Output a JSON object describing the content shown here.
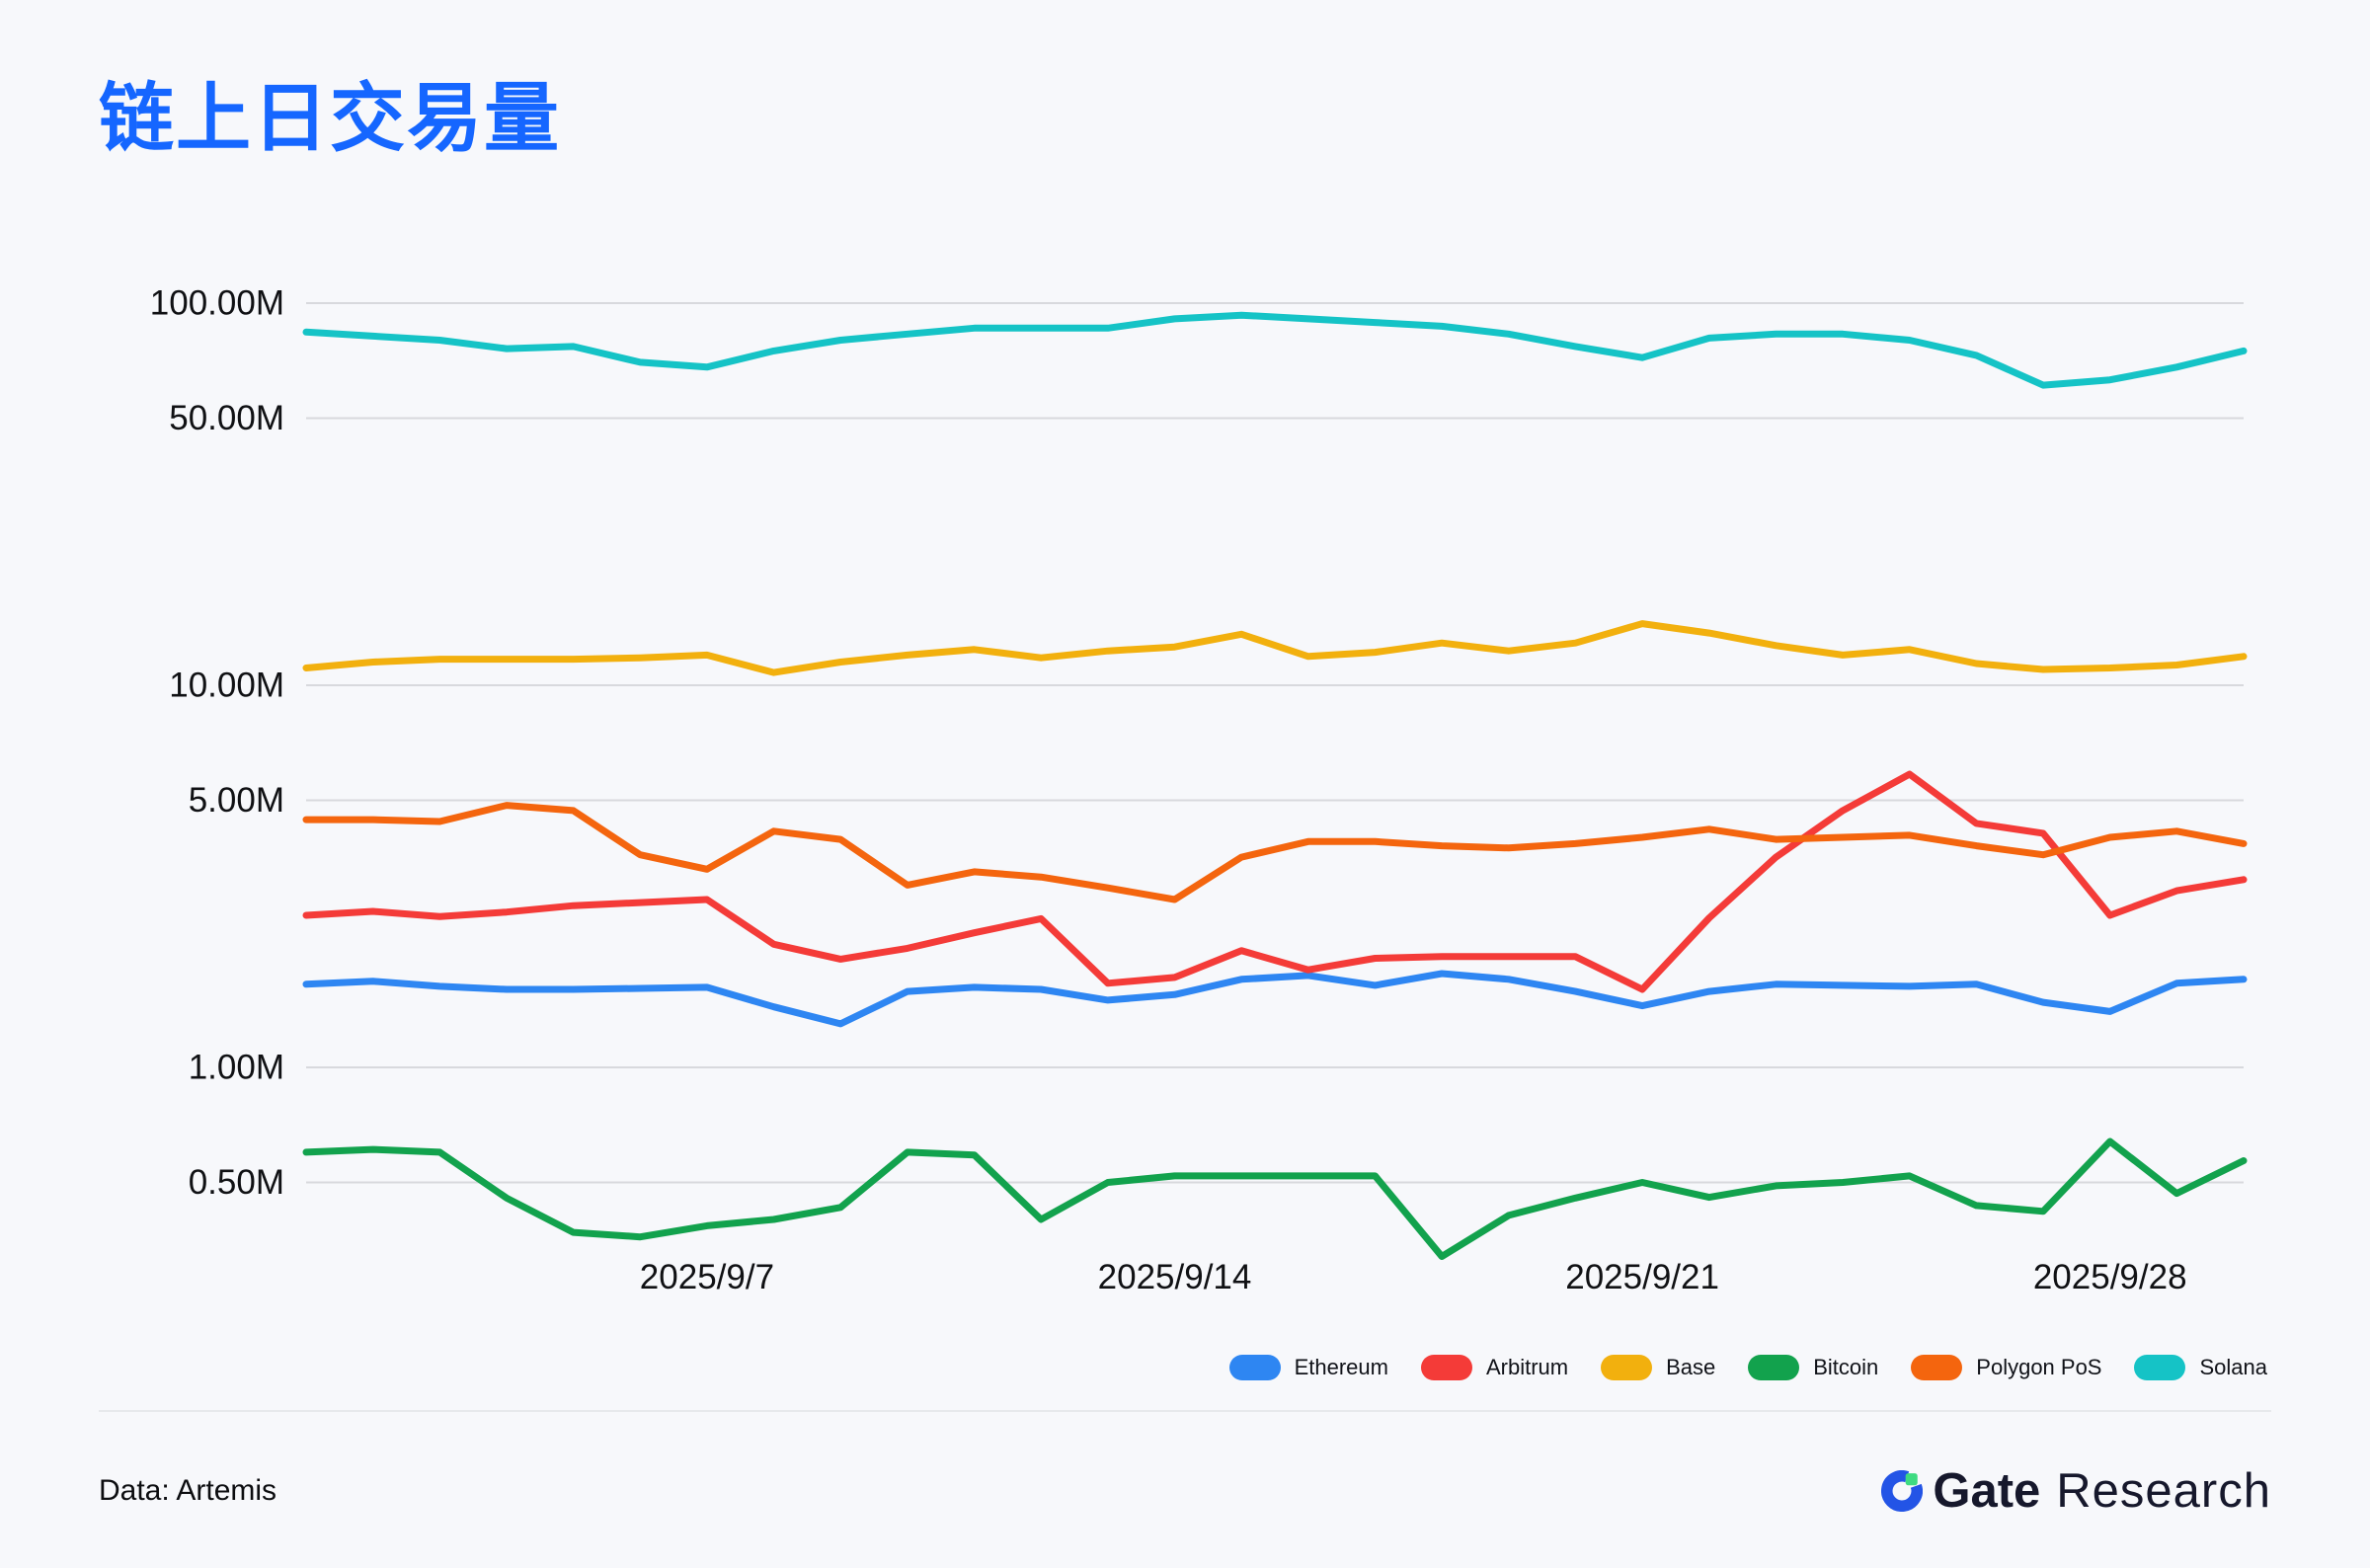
{
  "page": {
    "title": "链上日交易量",
    "title_color": "#1566FF",
    "source_note": "Data: Artemis"
  },
  "brand": {
    "logo_text_bold": "Gate",
    "logo_text_regular": "Research",
    "logo_mark_color": "#2354E6",
    "logo_accent_color": "#3EDB81"
  },
  "chart_data": {
    "type": "line",
    "title": "链上日交易量",
    "xlabel": "",
    "ylabel": "",
    "unit": "M",
    "y_scale": "log",
    "grid": "horizontal-only",
    "legend_position": "bottom-right",
    "x": [
      "2025/9/1",
      "2025/9/2",
      "2025/9/3",
      "2025/9/4",
      "2025/9/5",
      "2025/9/6",
      "2025/9/7",
      "2025/9/8",
      "2025/9/9",
      "2025/9/10",
      "2025/9/11",
      "2025/9/12",
      "2025/9/13",
      "2025/9/14",
      "2025/9/15",
      "2025/9/16",
      "2025/9/17",
      "2025/9/18",
      "2025/9/19",
      "2025/9/20",
      "2025/9/21",
      "2025/9/22",
      "2025/9/23",
      "2025/9/24",
      "2025/9/25",
      "2025/9/26",
      "2025/9/27",
      "2025/9/28",
      "2025/9/29",
      "2025/9/30"
    ],
    "x_tick_indices": [
      6,
      13,
      20,
      27
    ],
    "x_tick_labels": [
      "2025/9/7",
      "2025/9/14",
      "2025/9/21",
      "2025/9/28"
    ],
    "y_gridlines": [
      {
        "value": 100,
        "label": "100.00M"
      },
      {
        "value": 50,
        "label": "50.00M"
      },
      {
        "value": 10,
        "label": "10.00M"
      },
      {
        "value": 5,
        "label": "5.00M"
      },
      {
        "value": 1,
        "label": "1.00M"
      },
      {
        "value": 0.5,
        "label": "0.50M"
      }
    ],
    "series": [
      {
        "name": "Ethereum",
        "color": "#2E86F2",
        "values": [
          1.65,
          1.68,
          1.63,
          1.6,
          1.6,
          1.61,
          1.62,
          1.44,
          1.3,
          1.58,
          1.62,
          1.6,
          1.5,
          1.55,
          1.7,
          1.74,
          1.64,
          1.76,
          1.7,
          1.58,
          1.45,
          1.58,
          1.65,
          1.64,
          1.63,
          1.65,
          1.48,
          1.4,
          1.66,
          1.7
        ]
      },
      {
        "name": "Arbitrum",
        "color": "#F43B38",
        "values": [
          2.5,
          2.56,
          2.48,
          2.55,
          2.65,
          2.7,
          2.75,
          2.1,
          1.92,
          2.05,
          2.25,
          2.45,
          1.66,
          1.72,
          2.02,
          1.8,
          1.93,
          1.95,
          1.95,
          1.95,
          1.6,
          2.46,
          3.55,
          4.7,
          5.85,
          4.35,
          4.1,
          2.5,
          2.9,
          3.1
        ]
      },
      {
        "name": "Base",
        "color": "#F2B00E",
        "values": [
          11.1,
          11.5,
          11.7,
          11.7,
          11.7,
          11.8,
          12.0,
          10.8,
          11.5,
          12.0,
          12.4,
          11.8,
          12.3,
          12.6,
          13.6,
          11.9,
          12.2,
          12.9,
          12.3,
          12.9,
          14.5,
          13.7,
          12.7,
          12.0,
          12.4,
          11.4,
          11.0,
          11.1,
          11.3,
          11.9
        ]
      },
      {
        "name": "Bitcoin",
        "color": "#12A24D",
        "values": [
          0.6,
          0.61,
          0.6,
          0.455,
          0.37,
          0.36,
          0.385,
          0.4,
          0.43,
          0.6,
          0.59,
          0.4,
          0.5,
          0.52,
          0.52,
          0.52,
          0.52,
          0.32,
          0.41,
          0.455,
          0.5,
          0.457,
          0.49,
          0.5,
          0.52,
          0.435,
          0.42,
          0.64,
          0.468,
          0.57
        ]
      },
      {
        "name": "Polygon PoS",
        "color": "#F4650E",
        "values": [
          4.45,
          4.45,
          4.4,
          4.85,
          4.7,
          3.6,
          3.3,
          4.15,
          3.95,
          3.0,
          3.25,
          3.15,
          2.95,
          2.75,
          3.55,
          3.9,
          3.9,
          3.8,
          3.75,
          3.85,
          4.0,
          4.2,
          3.95,
          4.0,
          4.05,
          3.8,
          3.6,
          4.0,
          4.15,
          3.85
        ]
      },
      {
        "name": "Solana",
        "color": "#15C3C6",
        "values": [
          84,
          82,
          80,
          76,
          77,
          70,
          68,
          75,
          80,
          83,
          86,
          86,
          86,
          91,
          93,
          91,
          89,
          87,
          83,
          77,
          72,
          81,
          83,
          83,
          80,
          73,
          61,
          63,
          68,
          75
        ]
      }
    ]
  }
}
